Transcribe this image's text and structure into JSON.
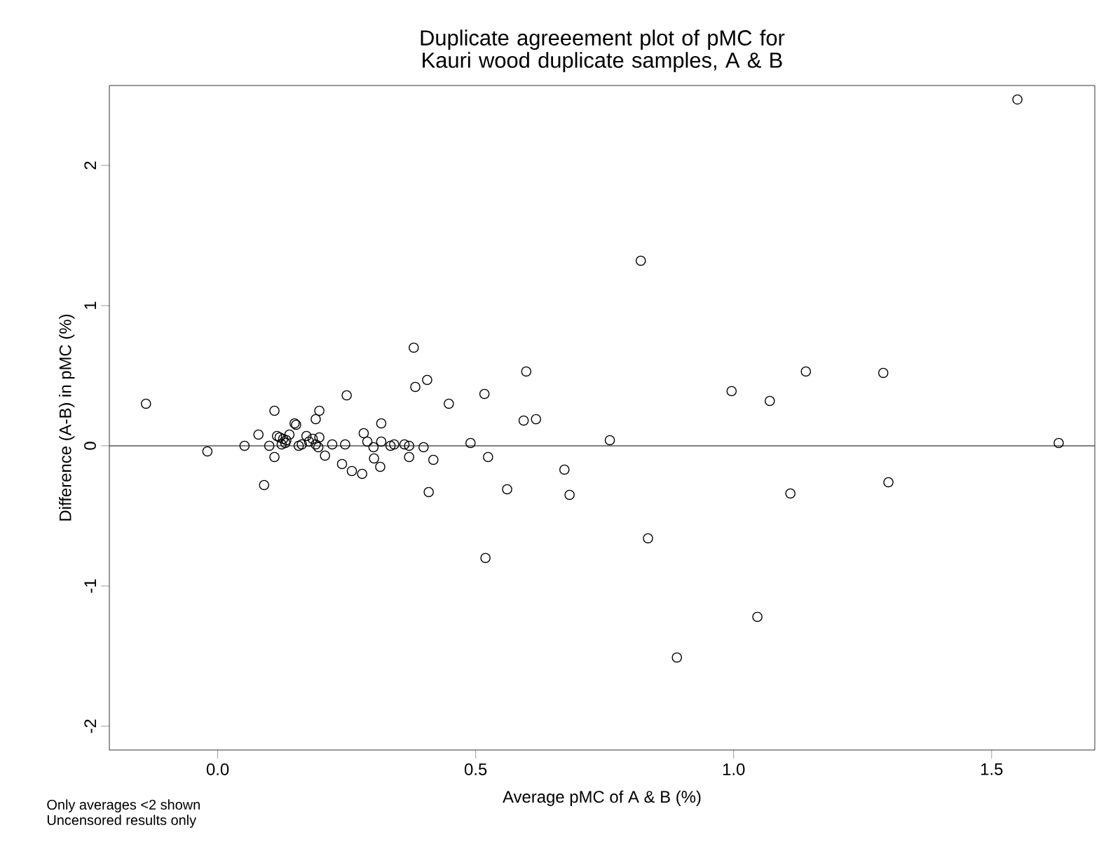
{
  "chart_data": {
    "type": "scatter",
    "title": "Duplicate agreeement plot of pMC for Kauri wood duplicate samples, A & B",
    "xlabel": "Average pMC of A & B (%)",
    "ylabel": "Difference (A-B) in pMC (%)",
    "annotations": [
      "Only averages <2 shown",
      "Uncensored results only"
    ],
    "x": [
      -0.139,
      -0.02,
      0.052,
      0.079,
      0.09,
      0.11,
      0.1,
      0.11,
      0.115,
      0.12,
      0.127,
      0.133,
      0.139,
      0.124,
      0.131,
      0.149,
      0.152,
      0.157,
      0.163,
      0.172,
      0.177,
      0.184,
      0.19,
      0.195,
      0.197,
      0.19,
      0.197,
      0.208,
      0.222,
      0.247,
      0.25,
      0.241,
      0.26,
      0.28,
      0.283,
      0.29,
      0.317,
      0.302,
      0.303,
      0.315,
      0.317,
      0.335,
      0.342,
      0.362,
      0.371,
      0.371,
      0.38,
      0.383,
      0.406,
      0.399,
      0.418,
      0.409,
      0.448,
      0.49,
      0.517,
      0.598,
      0.593,
      0.617,
      0.524,
      0.561,
      0.672,
      0.682,
      0.76,
      0.834,
      0.519,
      0.996,
      1.07,
      0.82,
      0.89,
      1.046,
      1.55,
      1.63,
      1.14,
      1.29,
      1.11,
      1.3
    ],
    "values": [
      0.3,
      -0.04,
      0.0,
      0.08,
      -0.28,
      0.25,
      0.0,
      -0.08,
      0.07,
      0.06,
      0.05,
      0.04,
      0.08,
      0.01,
      0.02,
      0.16,
      0.15,
      0.0,
      0.01,
      0.07,
      0.03,
      0.05,
      0.01,
      -0.01,
      0.06,
      0.19,
      0.25,
      -0.07,
      0.01,
      0.01,
      0.36,
      -0.13,
      -0.18,
      -0.2,
      0.09,
      0.03,
      0.16,
      -0.01,
      -0.09,
      -0.15,
      0.03,
      0.0,
      0.01,
      0.01,
      0.0,
      -0.08,
      0.7,
      0.42,
      0.47,
      -0.01,
      -0.1,
      -0.33,
      0.3,
      0.02,
      0.37,
      0.53,
      0.18,
      0.19,
      -0.08,
      -0.31,
      -0.17,
      -0.35,
      0.04,
      -0.66,
      -0.8,
      0.39,
      0.32,
      1.32,
      -1.51,
      -1.22,
      2.47,
      0.02,
      0.53,
      0.52,
      -0.34,
      -0.26
    ],
    "color": "#000000",
    "marker": "circle",
    "xlim": [
      -0.21,
      1.7
    ],
    "ylim": [
      -2.17,
      2.57
    ],
    "xticks": [
      {
        "value": 0,
        "label": "0.0"
      },
      {
        "value": 0.5,
        "label": "0.5"
      },
      {
        "value": 1,
        "label": "1.0"
      },
      {
        "value": 1.5,
        "label": "1.5"
      }
    ],
    "yticks": [
      -2,
      -1,
      0,
      1,
      2
    ],
    "ref_lines": [
      {
        "axis": "y",
        "value": 0,
        "color": "#555555"
      }
    ]
  }
}
